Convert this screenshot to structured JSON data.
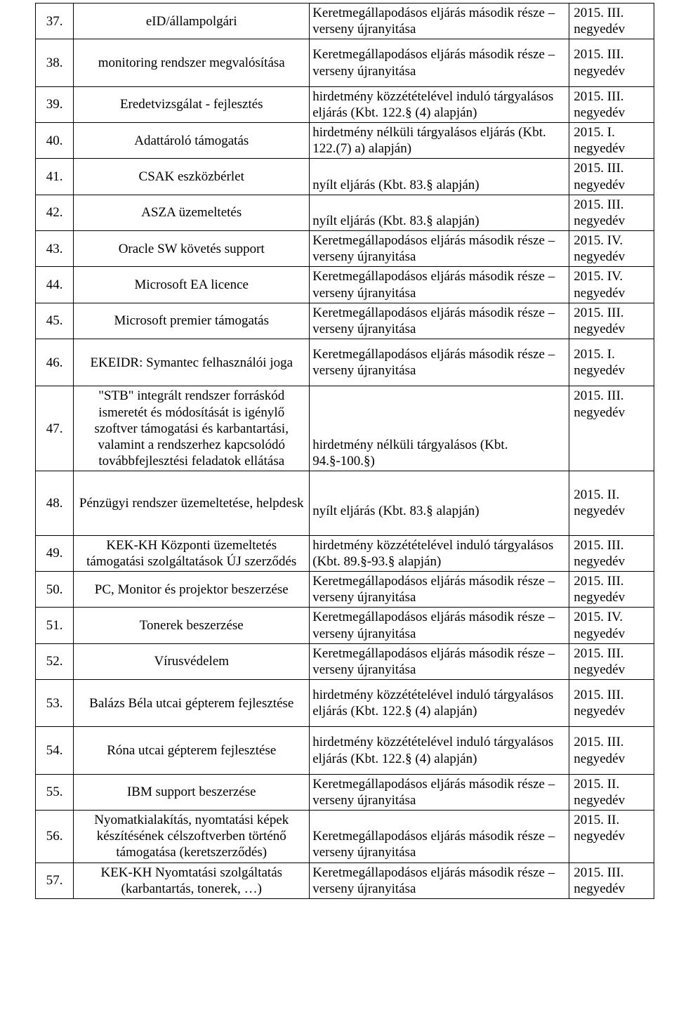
{
  "table": {
    "rows": [
      {
        "num": "37.",
        "name": "eID/állampolgári",
        "proc": "Keretmegállapodásos eljárás második része – verseny újranyitása",
        "date": "2015. III. negyedév",
        "height": ""
      },
      {
        "num": "38.",
        "name": "monitoring rendszer megvalósítása",
        "proc": "Keretmegállapodásos eljárás második része – verseny újranyitása",
        "date": "2015. III. negyedév",
        "height": "tall"
      },
      {
        "num": "39.",
        "name": "Eredetvizsgálat - fejlesztés",
        "proc": "hirdetmény közzétételével induló tárgyalásos eljárás (Kbt. 122.§ (4) alapján)",
        "date": "2015. III. negyedév",
        "height": ""
      },
      {
        "num": "40.",
        "name": "Adattároló támogatás",
        "proc": "hirdetmény nélküli tárgyalásos eljárás (Kbt. 122.(7) a) alapján)",
        "date": "2015. I. negyedév",
        "height": ""
      },
      {
        "num": "41.",
        "name": "CSAK eszközbérlet",
        "proc": "nyílt eljárás (Kbt. 83.§ alapján)",
        "date": "2015. III. negyedév",
        "height": ""
      },
      {
        "num": "42.",
        "name": "ASZA üzemeltetés",
        "proc": "nyílt eljárás (Kbt. 83.§ alapján)",
        "date": "2015. III. negyedév",
        "height": ""
      },
      {
        "num": "43.",
        "name": "Oracle SW követés support",
        "proc": "Keretmegállapodásos eljárás második része – verseny újranyitása",
        "date": "2015. IV. negyedév",
        "height": ""
      },
      {
        "num": "44.",
        "name": "Microsoft EA licence",
        "proc": "Keretmegállapodásos eljárás második része – verseny újranyitása",
        "date": "2015. IV. negyedév",
        "height": ""
      },
      {
        "num": "45.",
        "name": "Microsoft premier támogatás",
        "proc": "Keretmegállapodásos eljárás második része – verseny újranyitása",
        "date": "2015. III. negyedév",
        "height": ""
      },
      {
        "num": "46.",
        "name": "EKEIDR: Symantec felhasználói joga",
        "proc": "Keretmegállapodásos eljárás második része – verseny újranyitása",
        "date": "2015. I. negyedév",
        "height": "tall"
      },
      {
        "num": "47.",
        "name": "\"STB\" integrált rendszer forráskód ismeretét és módosítását is igénylő szoftver támogatási és karbantartási, valamint a rendszerhez kapcsolódó továbbfejlesztési feladatok ellátása",
        "proc": "hirdetmény nélküli tárgyalásos (Kbt. 94.§-100.§)",
        "date": "2015. III. negyedév",
        "height": ""
      },
      {
        "num": "48.",
        "name": "Pénzügyi rendszer üzemeltetése, helpdesk",
        "proc": "nyílt eljárás (Kbt. 83.§ alapján)",
        "date": "2015. II. negyedév",
        "height": "xtall"
      },
      {
        "num": "49.",
        "name": "KEK-KH Központi üzemeltetés támogatási szolgáltatások ÚJ szerződés",
        "proc": "hirdetmény közzétételével induló tárgyalásos (Kbt. 89.§-93.§ alapján)",
        "date": "2015. III. negyedév",
        "height": ""
      },
      {
        "num": "50.",
        "name": "PC, Monitor és projektor beszerzése",
        "proc": "Keretmegállapodásos eljárás második része – verseny újranyitása",
        "date": "2015. III. negyedév",
        "height": ""
      },
      {
        "num": "51.",
        "name": "Tonerek beszerzése",
        "proc": "Keretmegállapodásos eljárás második része – verseny újranyitása",
        "date": "2015. IV. negyedév",
        "height": ""
      },
      {
        "num": "52.",
        "name": "Vírusvédelem",
        "proc": "Keretmegállapodásos eljárás második része – verseny újranyitása",
        "date": "2015. III. negyedév",
        "height": ""
      },
      {
        "num": "53.",
        "name": "Balázs Béla utcai gépterem fejlesztése",
        "proc": "hirdetmény közzétételével induló tárgyalásos eljárás (Kbt. 122.§ (4) alapján)",
        "date": "2015. III. negyedév",
        "height": "tall"
      },
      {
        "num": "54.",
        "name": "Róna utcai gépterem fejlesztése",
        "proc": "hirdetmény közzétételével induló tárgyalásos eljárás (Kbt. 122.§ (4) alapján)",
        "date": "2015. III. negyedév",
        "height": "tall"
      },
      {
        "num": "55.",
        "name": "IBM support beszerzése",
        "proc": "Keretmegállapodásos eljárás második része – verseny újranyitása",
        "date": "2015. II. negyedév",
        "height": ""
      },
      {
        "num": "56.",
        "name": "Nyomatkialakítás, nyomtatási képek készítésének célszoftverben történő támogatása (keretszerződés)",
        "proc": "Keretmegállapodásos eljárás második része – verseny újranyitása",
        "date": "2015. II. negyedév",
        "height": ""
      },
      {
        "num": "57.",
        "name": "KEK-KH Nyomtatási szolgáltatás (karbantartás, tonerek, …)",
        "proc": "Keretmegállapodásos eljárás második része – verseny újranyitása",
        "date": "2015. III. negyedév",
        "height": ""
      }
    ]
  }
}
